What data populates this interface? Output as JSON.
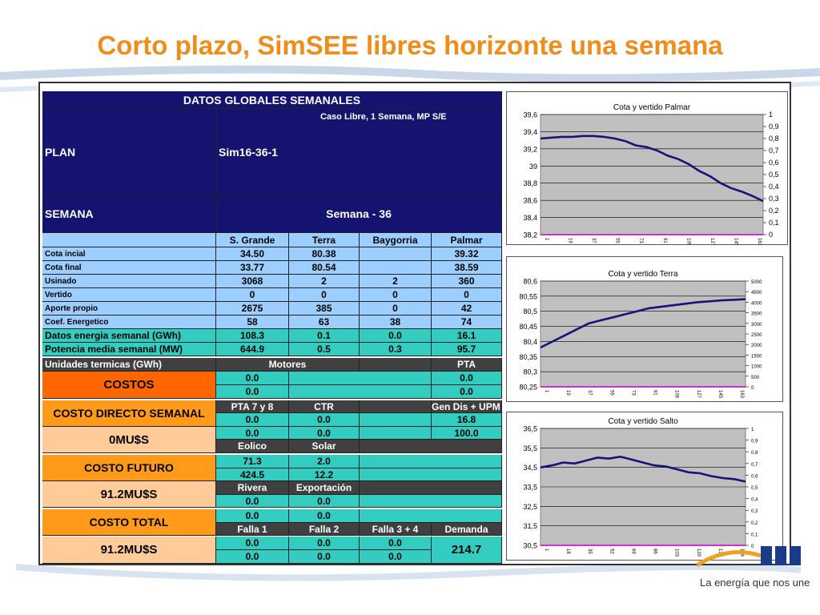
{
  "title": "Corto plazo, SimSEE libres horizonte una semana",
  "logo": {
    "tagline": "La energía que nos une",
    "brand_color": "#1a3a8a"
  },
  "table": {
    "header": "DATOS GLOBALES SEMANALES",
    "plan_label": "PLAN",
    "caso": "Caso Libre, 1 Semana, MP S/E",
    "plan_value": "Sim16-36-1",
    "semana_label": "SEMANA",
    "semana_value": "Semana - 36",
    "columns": [
      "S. Grande",
      "Terra",
      "Baygorria",
      "Palmar"
    ],
    "rows": [
      {
        "label": "Cota incial",
        "values": [
          "34.50",
          "80.38",
          "",
          "39.32"
        ]
      },
      {
        "label": "Cota final",
        "values": [
          "33.77",
          "80.54",
          "",
          "38.59"
        ]
      },
      {
        "label": "Usinado",
        "values": [
          "3068",
          "2",
          "2",
          "360"
        ]
      },
      {
        "label": "Vertido",
        "values": [
          "0",
          "0",
          "0",
          "0"
        ]
      },
      {
        "label": "Aporte propio",
        "values": [
          "2675",
          "385",
          "0",
          "42"
        ]
      },
      {
        "label": "Coef. Energetico",
        "values": [
          "58",
          "63",
          "38",
          "74"
        ]
      },
      {
        "label": "Datos energia semanal  (GWh)",
        "values": [
          "108.3",
          "0.1",
          "0.0",
          "16.1"
        ]
      },
      {
        "label": "Potencia media semanal (MW)",
        "values": [
          "644.9",
          "0.5",
          "0.3",
          "95.7"
        ]
      }
    ],
    "unidades_label": "Unidades termicas (GWh)",
    "motores_label": "Motores",
    "pta_label": "PTA",
    "costos_label": "COSTOS",
    "motores_vals": [
      "0.0",
      "0.0"
    ],
    "pta_vals": [
      "0.0",
      "0.0"
    ],
    "costo_directo_label": "COSTO DIRECTO SEMANAL",
    "pta78_label": "PTA 7 y 8",
    "ctr_label": "CTR",
    "gendis_label": "Gen Dis + UPM",
    "pta78_vals": [
      "0.0",
      "0.0"
    ],
    "ctr_vals": [
      "0.0",
      "0.0"
    ],
    "gendis_vals": [
      "16.8",
      "100.0"
    ],
    "costo_directo_value": "0MU$S",
    "eolico_label": "Eolico",
    "solar_label": "Solar",
    "eolico_vals": [
      "71.3",
      "424.5"
    ],
    "solar_vals": [
      "2.0",
      "12.2"
    ],
    "costo_futuro_label": "COSTO FUTURO",
    "costo_futuro_value": "91.2MU$S",
    "rivera_label": "Rivera",
    "exportacion_label": "Exportación",
    "rivera_vals": [
      "0.0",
      "0.0"
    ],
    "export_vals": [
      "0.0",
      "0.0"
    ],
    "costo_total_label": "COSTO TOTAL",
    "costo_total_value": "91.2MU$S",
    "falla1_label": "Falla 1",
    "falla2_label": "Falla 2",
    "falla34_label": "Falla 3 + 4",
    "demanda_label": "Demanda",
    "falla1_vals": [
      "0.0",
      "0.0"
    ],
    "falla2_vals": [
      "0.0",
      "0.0"
    ],
    "falla34_vals": [
      "0.0",
      "0.0"
    ],
    "demanda_value": "214.7"
  },
  "chart_data": [
    {
      "type": "line",
      "title": "Cota y vertido  Palmar",
      "ylim": [
        38.2,
        39.6
      ],
      "y_ticks": [
        "39,6",
        "39,4",
        "39,2",
        "39",
        "38,8",
        "38,6",
        "38,4",
        "38,2"
      ],
      "y2_ticks": [
        "1",
        "0,9",
        "0,8",
        "0,7",
        "0,6",
        "0,5",
        "0,4",
        "0,3",
        "0,2",
        "0,1",
        "0"
      ],
      "x_ticks": [
        "1",
        "19",
        "37",
        "55",
        "73",
        "91",
        "109",
        "127",
        "145",
        "163"
      ],
      "series": [
        {
          "values": [
            39.32,
            39.33,
            39.34,
            39.34,
            39.35,
            39.35,
            39.34,
            39.32,
            39.29,
            39.24,
            39.22,
            39.18,
            39.12,
            39.08,
            39.02,
            38.94,
            38.88,
            38.8,
            38.74,
            38.7,
            38.65,
            38.59
          ],
          "color": "#14147a"
        },
        {
          "values": [
            0,
            0
          ],
          "color": "#cc33cc"
        }
      ]
    },
    {
      "type": "line",
      "title": "Cota y vertido Terra",
      "ylim": [
        80.25,
        80.6
      ],
      "y_ticks": [
        "80,6",
        "80,55",
        "80,5",
        "80,45",
        "80,4",
        "80,35",
        "80,3",
        "80,25"
      ],
      "y2_ticks": [
        "5000",
        "4500",
        "4000",
        "3500",
        "3000",
        "2500",
        "2000",
        "1500",
        "1000",
        "500",
        "0"
      ],
      "x_ticks": [
        "1",
        "19",
        "37",
        "55",
        "73",
        "91",
        "109",
        "127",
        "145",
        "163"
      ],
      "series": [
        {
          "values": [
            80.38,
            80.4,
            80.42,
            80.44,
            80.46,
            80.47,
            80.48,
            80.49,
            80.5,
            80.51,
            80.515,
            80.52,
            80.525,
            80.53,
            80.533,
            80.536,
            80.538,
            80.54
          ],
          "color": "#14147a"
        },
        {
          "values": [
            0,
            0
          ],
          "color": "#cc33cc"
        }
      ]
    },
    {
      "type": "line",
      "title": "Cota y vertido Salto",
      "ylim": [
        30.5,
        36.5
      ],
      "y_ticks": [
        "36,5",
        "35,5",
        "34,5",
        "33,5",
        "32,5",
        "31,5",
        "30,5"
      ],
      "y2_ticks": [
        "1",
        "0,9",
        "0,8",
        "0,7",
        "0,6",
        "0,5",
        "0,4",
        "0,3",
        "0,2",
        "0,1",
        "0"
      ],
      "x_ticks": [
        "1",
        "18",
        "35",
        "52",
        "69",
        "86",
        "103",
        "120",
        "137",
        "154"
      ],
      "series": [
        {
          "values": [
            34.5,
            34.6,
            34.75,
            34.7,
            34.85,
            35.0,
            34.95,
            35.05,
            34.9,
            34.75,
            34.6,
            34.55,
            34.4,
            34.25,
            34.2,
            34.05,
            33.95,
            33.9,
            33.77
          ],
          "color": "#14147a"
        },
        {
          "values": [
            0,
            0
          ],
          "color": "#cc33cc"
        }
      ]
    }
  ]
}
